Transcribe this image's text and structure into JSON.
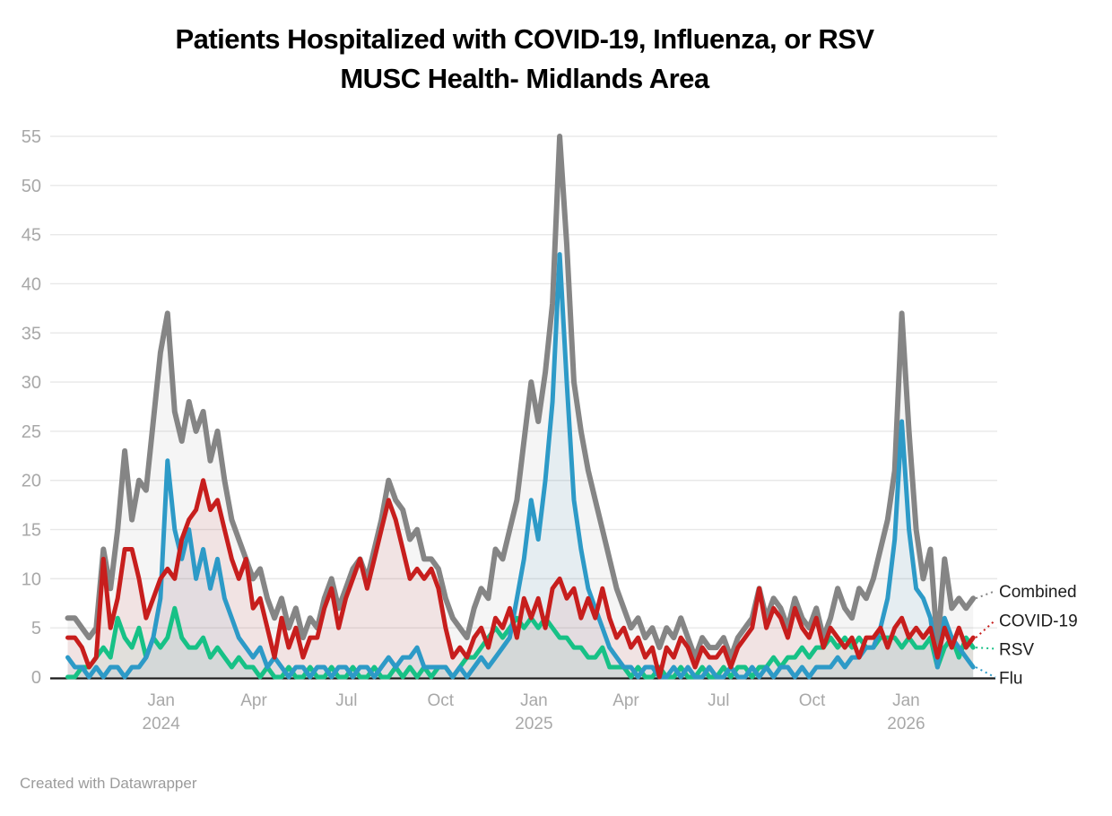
{
  "title": {
    "line1": "Patients Hospitalized with COVID-19, Influenza, or RSV",
    "line2": "MUSC Health- Midlands Area"
  },
  "footer": {
    "credit": "Created with Datawrapper"
  },
  "colors": {
    "combined": "#858585",
    "covid": "#c71e1d",
    "rsv": "#17c186",
    "flu": "#2d9ac7",
    "grid": "#e8e8e8",
    "axis_text": "#a8a8a8",
    "baseline": "#1a1a1a",
    "legend_text": "#1c1c1c"
  },
  "chart_data": {
    "type": "line",
    "title": "Patients Hospitalized with COVID-19, Influenza, or RSV MUSC Health- Midlands Area",
    "x_start": "2023-10-01",
    "x_end": "2026-03-08",
    "interval": "weekly",
    "grid": "on",
    "legend_position": "right-edge-labels",
    "ylim": [
      0,
      55
    ],
    "yticks": [
      0,
      5,
      10,
      15,
      20,
      25,
      30,
      35,
      40,
      45,
      50,
      55
    ],
    "x_ticks": [
      {
        "month": "Jan",
        "year": "2024",
        "week": 13.1
      },
      {
        "month": "Apr",
        "year": "",
        "week": 26.1
      },
      {
        "month": "Jul",
        "year": "",
        "week": 39.1
      },
      {
        "month": "Oct",
        "year": "",
        "week": 52.3
      },
      {
        "month": "Jan",
        "year": "2025",
        "week": 65.4
      },
      {
        "month": "Apr",
        "year": "",
        "week": 78.3
      },
      {
        "month": "Jul",
        "year": "",
        "week": 91.3
      },
      {
        "month": "Oct",
        "year": "",
        "week": 104.4
      },
      {
        "month": "Jan",
        "year": "2026",
        "week": 117.6
      }
    ],
    "series": [
      {
        "name": "Combined",
        "color_key": "combined",
        "values": [
          6,
          6,
          5,
          4,
          5,
          13,
          9,
          15,
          23,
          16,
          20,
          19,
          26,
          33,
          37,
          27,
          24,
          28,
          25,
          27,
          22,
          25,
          20,
          16,
          14,
          12,
          10,
          11,
          8,
          6,
          8,
          5,
          7,
          4,
          6,
          5,
          8,
          10,
          7,
          9,
          11,
          12,
          10,
          13,
          16,
          20,
          18,
          17,
          14,
          15,
          12,
          12,
          11,
          8,
          6,
          5,
          4,
          7,
          9,
          8,
          13,
          12,
          15,
          18,
          24,
          30,
          26,
          31,
          38,
          55,
          44,
          30,
          25,
          21,
          18,
          15,
          12,
          9,
          7,
          5,
          6,
          4,
          5,
          3,
          5,
          4,
          6,
          4,
          2,
          4,
          3,
          3,
          4,
          2,
          4,
          5,
          6,
          9,
          6,
          8,
          7,
          5,
          8,
          6,
          5,
          7,
          4,
          6,
          9,
          7,
          6,
          9,
          8,
          10,
          13,
          16,
          21,
          37,
          25,
          15,
          10,
          13,
          3,
          12,
          7,
          8,
          7,
          8
        ]
      },
      {
        "name": "COVID-19",
        "color_key": "covid",
        "values": [
          4,
          4,
          3,
          1,
          2,
          12,
          5,
          8,
          13,
          13,
          10,
          6,
          8,
          10,
          11,
          10,
          14,
          16,
          17,
          20,
          17,
          18,
          15,
          12,
          10,
          12,
          7,
          8,
          5,
          2,
          6,
          3,
          5,
          2,
          4,
          4,
          7,
          9,
          5,
          8,
          10,
          12,
          9,
          12,
          15,
          18,
          16,
          13,
          10,
          11,
          10,
          11,
          9,
          5,
          2,
          3,
          2,
          4,
          5,
          3,
          6,
          5,
          7,
          4,
          8,
          6,
          8,
          5,
          9,
          10,
          8,
          9,
          6,
          8,
          6,
          9,
          6,
          4,
          5,
          3,
          4,
          2,
          3,
          0,
          3,
          2,
          4,
          3,
          1,
          3,
          2,
          2,
          3,
          1,
          3,
          4,
          5,
          9,
          5,
          7,
          6,
          4,
          7,
          5,
          4,
          6,
          3,
          5,
          4,
          3,
          4,
          2,
          4,
          4,
          5,
          3,
          5,
          6,
          4,
          5,
          4,
          5,
          2,
          5,
          3,
          5,
          3,
          4
        ]
      },
      {
        "name": "RSV",
        "color_key": "rsv",
        "values": [
          0,
          0,
          1,
          1,
          2,
          3,
          2,
          6,
          4,
          3,
          5,
          2,
          4,
          3,
          4,
          7,
          4,
          3,
          3,
          4,
          2,
          3,
          2,
          1,
          2,
          1,
          1,
          0,
          1,
          0,
          0,
          1,
          0,
          0,
          1,
          0,
          0,
          1,
          0,
          0,
          1,
          0,
          0,
          1,
          0,
          0,
          1,
          0,
          1,
          0,
          1,
          0,
          1,
          1,
          0,
          1,
          2,
          2,
          3,
          4,
          5,
          4,
          5,
          6,
          5,
          6,
          5,
          6,
          5,
          4,
          4,
          3,
          3,
          2,
          2,
          3,
          1,
          1,
          1,
          0,
          1,
          0,
          0,
          1,
          0,
          0,
          1,
          0,
          0,
          1,
          0,
          0,
          1,
          0,
          1,
          1,
          0,
          1,
          1,
          2,
          1,
          2,
          2,
          3,
          2,
          3,
          3,
          4,
          3,
          4,
          3,
          4,
          3,
          3,
          4,
          4,
          4,
          3,
          4,
          3,
          3,
          4,
          1,
          3,
          4,
          2,
          4,
          3
        ]
      },
      {
        "name": "Flu",
        "color_key": "flu",
        "values": [
          2,
          1,
          1,
          0,
          1,
          0,
          1,
          1,
          0,
          1,
          1,
          2,
          4,
          8,
          22,
          15,
          12,
          15,
          10,
          13,
          9,
          12,
          8,
          6,
          4,
          3,
          2,
          3,
          1,
          2,
          1,
          0,
          1,
          1,
          0,
          1,
          1,
          0,
          1,
          1,
          0,
          1,
          1,
          0,
          1,
          2,
          1,
          2,
          2,
          3,
          1,
          1,
          1,
          1,
          0,
          1,
          0,
          1,
          2,
          1,
          2,
          3,
          4,
          8,
          12,
          18,
          14,
          20,
          28,
          43,
          30,
          18,
          13,
          9,
          7,
          5,
          3,
          2,
          1,
          1,
          0,
          1,
          1,
          0,
          0,
          1,
          0,
          1,
          0,
          0,
          1,
          0,
          0,
          1,
          0,
          0,
          1,
          0,
          1,
          0,
          1,
          1,
          0,
          1,
          0,
          1,
          1,
          1,
          2,
          1,
          2,
          2,
          3,
          3,
          5,
          8,
          14,
          26,
          15,
          9,
          8,
          6,
          1,
          6,
          4,
          3,
          2,
          1
        ]
      }
    ]
  }
}
